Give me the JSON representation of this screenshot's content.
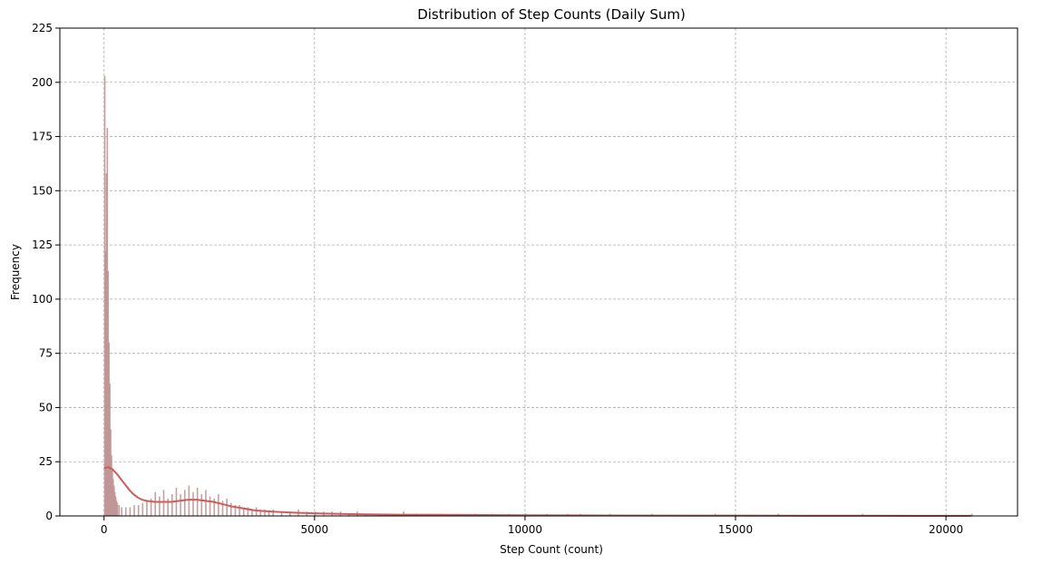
{
  "chart_data": {
    "type": "bar",
    "title": "Distribution of Step Counts (Daily Sum)",
    "xlabel": "Step Count (count)",
    "ylabel": "Frequency",
    "xlim": [
      -1050,
      21700
    ],
    "ylim": [
      0,
      225
    ],
    "xticks": [
      0,
      5000,
      10000,
      15000,
      20000
    ],
    "yticks": [
      0,
      25,
      50,
      75,
      100,
      125,
      150,
      175,
      200,
      225
    ],
    "grid": true,
    "colors": {
      "bar": "#bc8f8f",
      "kde": "#cd5c5c"
    },
    "bins": [
      {
        "x": 0,
        "y": 203
      },
      {
        "x": 20,
        "y": 122
      },
      {
        "x": 40,
        "y": 158
      },
      {
        "x": 60,
        "y": 179
      },
      {
        "x": 80,
        "y": 113
      },
      {
        "x": 100,
        "y": 80
      },
      {
        "x": 120,
        "y": 61
      },
      {
        "x": 140,
        "y": 40
      },
      {
        "x": 160,
        "y": 28
      },
      {
        "x": 180,
        "y": 22
      },
      {
        "x": 200,
        "y": 17
      },
      {
        "x": 220,
        "y": 14
      },
      {
        "x": 240,
        "y": 11
      },
      {
        "x": 260,
        "y": 9
      },
      {
        "x": 280,
        "y": 7
      },
      {
        "x": 300,
        "y": 6
      },
      {
        "x": 340,
        "y": 5
      },
      {
        "x": 400,
        "y": 4
      },
      {
        "x": 500,
        "y": 4
      },
      {
        "x": 600,
        "y": 4
      },
      {
        "x": 700,
        "y": 5
      },
      {
        "x": 800,
        "y": 5
      },
      {
        "x": 900,
        "y": 6
      },
      {
        "x": 1000,
        "y": 7
      },
      {
        "x": 1100,
        "y": 8
      },
      {
        "x": 1200,
        "y": 11
      },
      {
        "x": 1300,
        "y": 9
      },
      {
        "x": 1400,
        "y": 12
      },
      {
        "x": 1500,
        "y": 8
      },
      {
        "x": 1600,
        "y": 10
      },
      {
        "x": 1700,
        "y": 13
      },
      {
        "x": 1800,
        "y": 10
      },
      {
        "x": 1900,
        "y": 12
      },
      {
        "x": 2000,
        "y": 14
      },
      {
        "x": 2100,
        "y": 11
      },
      {
        "x": 2200,
        "y": 13
      },
      {
        "x": 2300,
        "y": 10
      },
      {
        "x": 2400,
        "y": 12
      },
      {
        "x": 2500,
        "y": 9
      },
      {
        "x": 2600,
        "y": 8
      },
      {
        "x": 2700,
        "y": 10
      },
      {
        "x": 2800,
        "y": 7
      },
      {
        "x": 2900,
        "y": 8
      },
      {
        "x": 3000,
        "y": 6
      },
      {
        "x": 3100,
        "y": 5
      },
      {
        "x": 3200,
        "y": 5
      },
      {
        "x": 3300,
        "y": 4
      },
      {
        "x": 3400,
        "y": 4
      },
      {
        "x": 3500,
        "y": 3
      },
      {
        "x": 3600,
        "y": 4
      },
      {
        "x": 3700,
        "y": 3
      },
      {
        "x": 3800,
        "y": 3
      },
      {
        "x": 3900,
        "y": 2
      },
      {
        "x": 4000,
        "y": 3
      },
      {
        "x": 4200,
        "y": 2
      },
      {
        "x": 4400,
        "y": 2
      },
      {
        "x": 4600,
        "y": 3
      },
      {
        "x": 4800,
        "y": 2
      },
      {
        "x": 5000,
        "y": 2
      },
      {
        "x": 5200,
        "y": 2
      },
      {
        "x": 5400,
        "y": 2
      },
      {
        "x": 5600,
        "y": 2
      },
      {
        "x": 5800,
        "y": 1
      },
      {
        "x": 6000,
        "y": 2
      },
      {
        "x": 6200,
        "y": 1
      },
      {
        "x": 6500,
        "y": 1
      },
      {
        "x": 6800,
        "y": 1
      },
      {
        "x": 7100,
        "y": 2
      },
      {
        "x": 7400,
        "y": 1
      },
      {
        "x": 7700,
        "y": 1
      },
      {
        "x": 8000,
        "y": 1
      },
      {
        "x": 8400,
        "y": 1
      },
      {
        "x": 8800,
        "y": 1
      },
      {
        "x": 9200,
        "y": 1
      },
      {
        "x": 9600,
        "y": 1
      },
      {
        "x": 10000,
        "y": 1
      },
      {
        "x": 10500,
        "y": 1
      },
      {
        "x": 11000,
        "y": 1
      },
      {
        "x": 11300,
        "y": 1
      },
      {
        "x": 12000,
        "y": 1
      },
      {
        "x": 13000,
        "y": 1
      },
      {
        "x": 14500,
        "y": 1
      },
      {
        "x": 16000,
        "y": 1
      },
      {
        "x": 18000,
        "y": 1
      },
      {
        "x": 20600,
        "y": 1
      }
    ],
    "kde": {
      "x": [
        0,
        100,
        200,
        300,
        400,
        500,
        600,
        700,
        800,
        900,
        1000,
        1200,
        1400,
        1600,
        1800,
        2000,
        2200,
        2400,
        2600,
        2800,
        3000,
        3300,
        3600,
        4000,
        4500,
        5000,
        6000,
        7000,
        8000,
        9000,
        10000,
        12000,
        15000,
        18000,
        20600
      ],
      "y": [
        22,
        22.5,
        21.5,
        19.5,
        17,
        14.5,
        12,
        10,
        8.5,
        7.5,
        7,
        6.5,
        6.5,
        6.5,
        7,
        7.5,
        7.5,
        7,
        6.5,
        5.5,
        4.5,
        3.5,
        2.5,
        2,
        1.5,
        1.2,
        0.8,
        0.6,
        0.5,
        0.4,
        0.3,
        0.2,
        0.15,
        0.1,
        0.05
      ]
    }
  }
}
